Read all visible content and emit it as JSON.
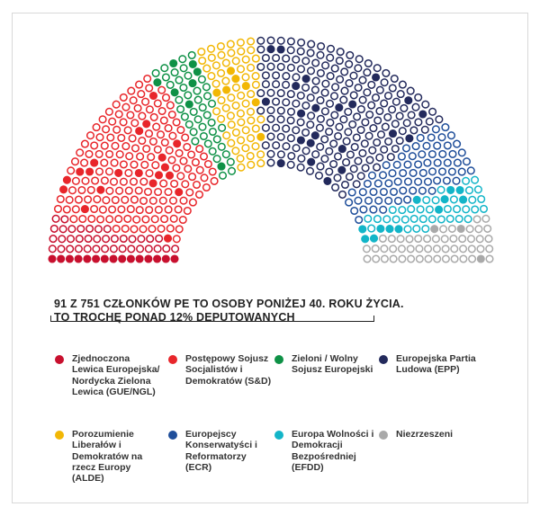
{
  "chart_data": {
    "type": "parliament",
    "title": "91 Z 751 CZŁONKÓW PE TO OSOBY PONIŻEJ 40. ROKU ŻYCIA.",
    "subtitle": "TO TROCHĘ PONAD 12% DEPUTOWANYCH",
    "total_seats": 751,
    "under_40_total": 91,
    "legend_note": "filled = under 40, hollow = 40 or older",
    "series": [
      {
        "name": "Zjednoczona Lewica Europejska/ Nordycka Zielona Lewica (GUE/NGL)",
        "color": "#c8102e",
        "seats": 52,
        "under_40": 15
      },
      {
        "name": "Postępowy Sojusz Socjalistów i Demokratów (S&D)",
        "color": "#e8262b",
        "seats": 191,
        "under_40": 20
      },
      {
        "name": "Zieloni / Wolny Sojusz Europejski",
        "color": "#0e9146",
        "seats": 50,
        "under_40": 8
      },
      {
        "name": "Porozumienie Liberałów i Demokratów na rzecz Europy (ALDE)",
        "color": "#f2b705",
        "seats": 67,
        "under_40": 7
      },
      {
        "name": "Europejska Partia Ludowa (EPP)",
        "color": "#232a5c",
        "seats": 221,
        "under_40": 22
      },
      {
        "name": "Europejscy Konserwatyści i Reformatorzy (ECR)",
        "color": "#1f4e9a",
        "seats": 70,
        "under_40": 4
      },
      {
        "name": "Europa Wolności i Demokracji Bezpośredniej (EFDD)",
        "color": "#13b5c8",
        "seats": 48,
        "under_40": 12
      },
      {
        "name": "Niezrzeszeni",
        "color": "#a9a9a9",
        "seats": 52,
        "under_40": 3
      }
    ]
  },
  "legend": [
    "Zjednoczona Lewica Europejska/ Nordycka Zielona Lewica (GUE/NGL)",
    "Postępowy Sojusz Socjalistów i Demokratów (S&D)",
    "Zieloni / Wolny Sojusz Europejski",
    "Europejska Partia Ludowa (EPP)",
    "Porozumienie Liberałów i Demokratów na rzecz Europy (ALDE)",
    "Europejscy Konserwatyści i Reformatorzy (ECR)",
    "Europa Wolności i Demokracji Bezpośredniej (EFDD)",
    "Niezrzeszeni"
  ]
}
